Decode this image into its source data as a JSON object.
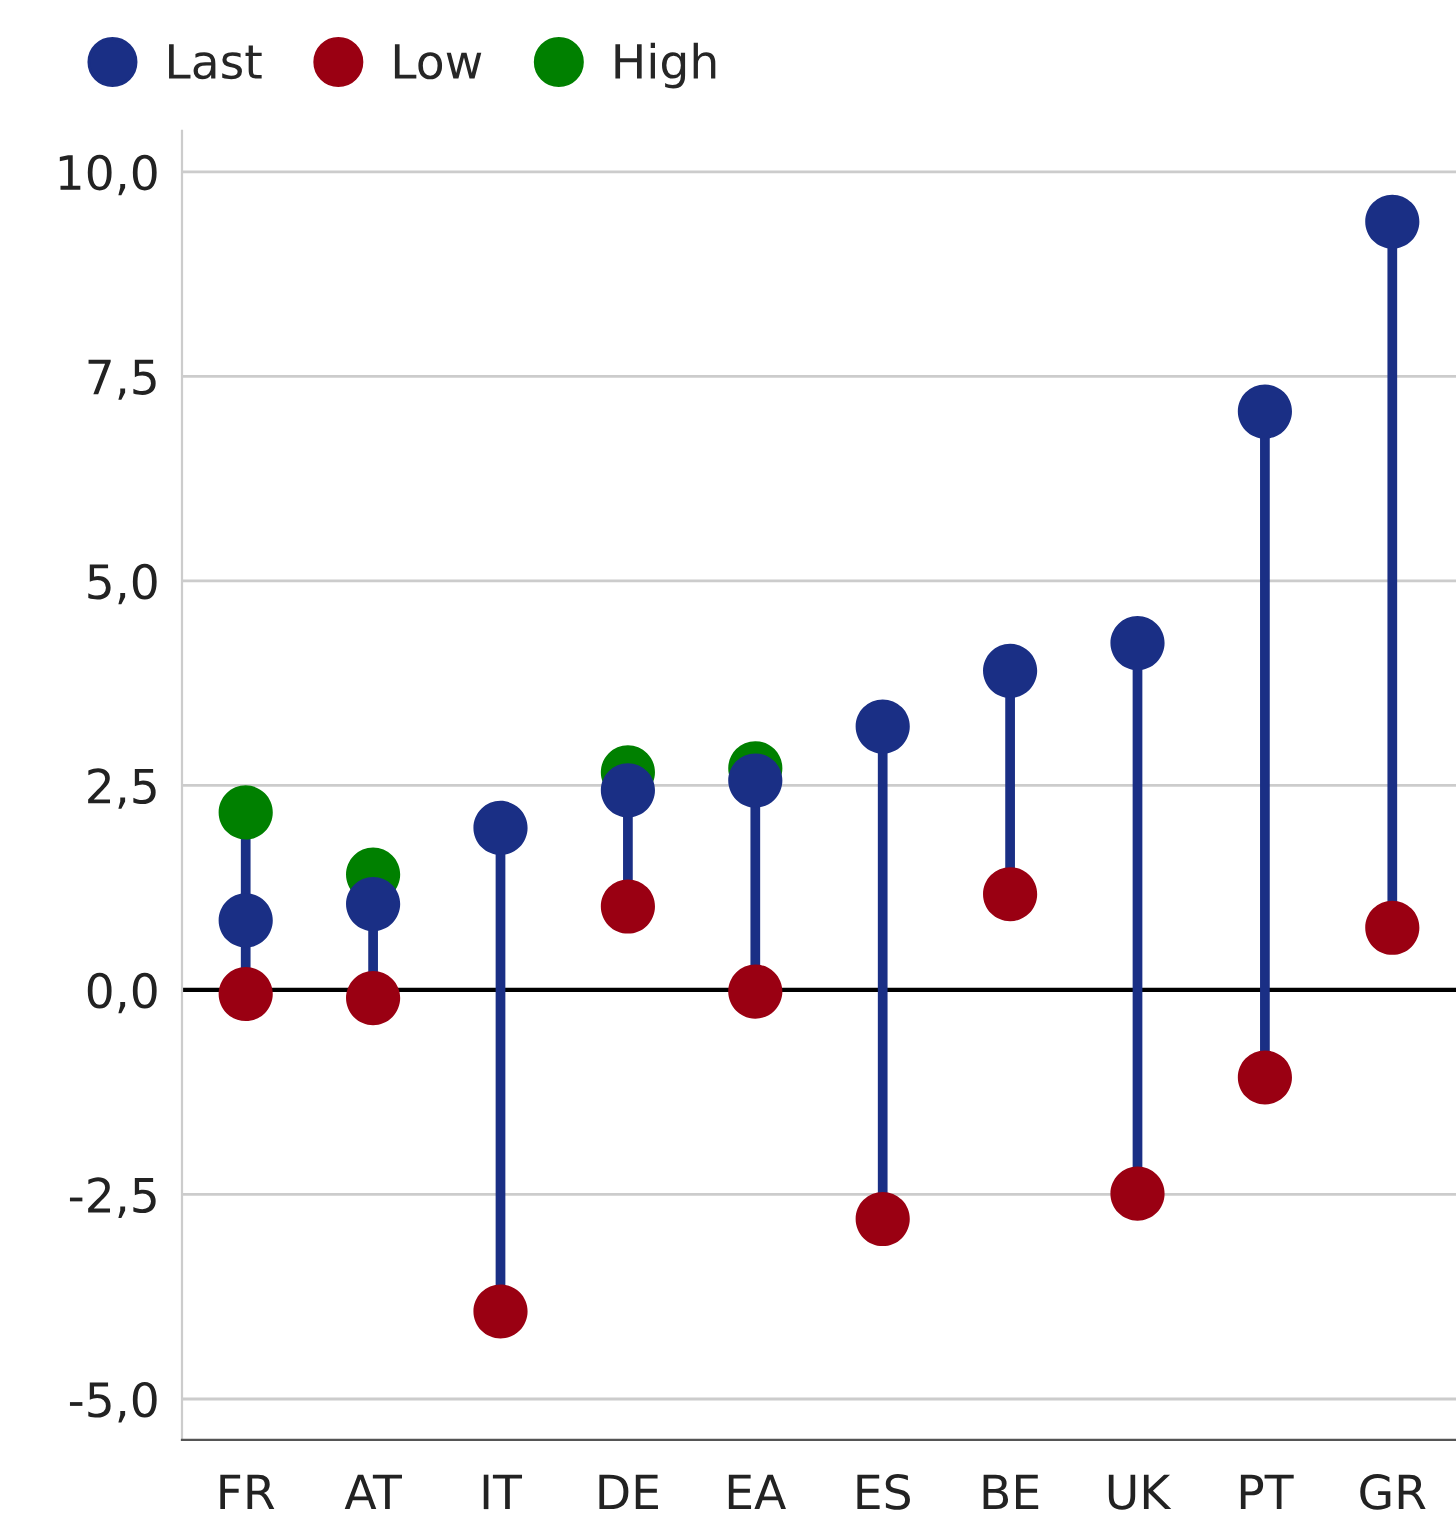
{
  "chart_data": {
    "type": "lollipop",
    "categories": [
      "FR",
      "AT",
      "IT",
      "DE",
      "EA",
      "ES",
      "BE",
      "UK",
      "PT",
      "GR"
    ],
    "series": [
      {
        "name": "Last",
        "color": "#1a2f85",
        "values": [
          0.85,
          1.05,
          1.98,
          2.44,
          2.56,
          3.22,
          3.9,
          4.24,
          7.07,
          9.39
        ]
      },
      {
        "name": "Low",
        "color": "#9a0012",
        "values": [
          -0.05,
          -0.1,
          -3.93,
          1.02,
          -0.02,
          -2.8,
          1.17,
          -2.49,
          -1.07,
          0.76
        ]
      },
      {
        "name": "High",
        "color": "#008000",
        "values": [
          2.17,
          1.41,
          null,
          2.66,
          2.71,
          null,
          null,
          null,
          null,
          null
        ]
      }
    ],
    "ylim": [
      -5.5,
      10.5
    ],
    "yticks": [
      {
        "value": -5,
        "label": "-5,0"
      },
      {
        "value": -2.5,
        "label": "-2,5"
      },
      {
        "value": 0,
        "label": "0,0"
      },
      {
        "value": 2.5,
        "label": "2,5"
      },
      {
        "value": 5,
        "label": "5,0"
      },
      {
        "value": 7.5,
        "label": "7,5"
      },
      {
        "value": 10,
        "label": "10,0"
      }
    ],
    "ref_lines": [
      {
        "axis": "y",
        "value": 0,
        "color": "#000000"
      }
    ],
    "grid": "y",
    "legend": "top left",
    "marker": "circle"
  }
}
